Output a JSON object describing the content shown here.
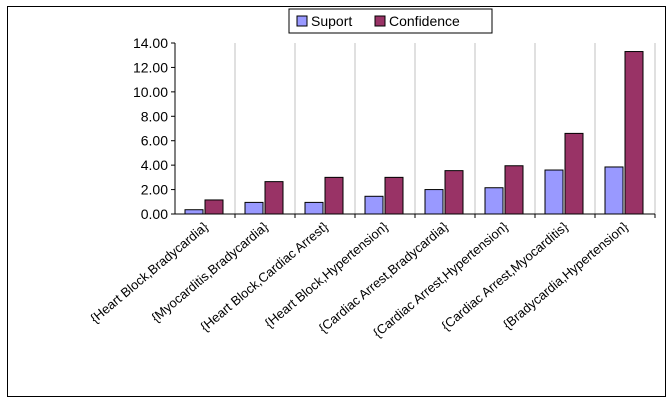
{
  "chart_data": {
    "type": "bar",
    "title": "",
    "xlabel": "",
    "ylabel": "",
    "categories": [
      "{Heart Block,Bradycardia}",
      "{Myocarditis,Bradycardia}",
      "{Heart Block,Cardiac Arrest}",
      "{Heart Block,Hypertension}",
      "{Cardiac Arrest,Bradycardia}",
      "{Cardiac Arrest,Hypertension}",
      "{Cardiac Arrest,Myocarditis}",
      "{Bradycardia,Hypertension}"
    ],
    "series": [
      {
        "name": "Suport",
        "color": "#9999ff",
        "values": [
          0.35,
          0.95,
          0.95,
          1.45,
          2.0,
          2.15,
          3.6,
          3.85
        ]
      },
      {
        "name": "Confidence",
        "color": "#993366",
        "values": [
          1.15,
          2.65,
          3.0,
          3.0,
          3.55,
          3.95,
          6.6,
          13.3
        ]
      }
    ],
    "ylim": [
      0,
      14
    ],
    "yticks": [
      "0.00",
      "2.00",
      "4.00",
      "6.00",
      "8.00",
      "10.00",
      "12.00",
      "14.00"
    ],
    "ytick_values": [
      0,
      2,
      4,
      6,
      8,
      10,
      12,
      14
    ],
    "grid": "vertical category separators",
    "legend_position": "top-center"
  }
}
